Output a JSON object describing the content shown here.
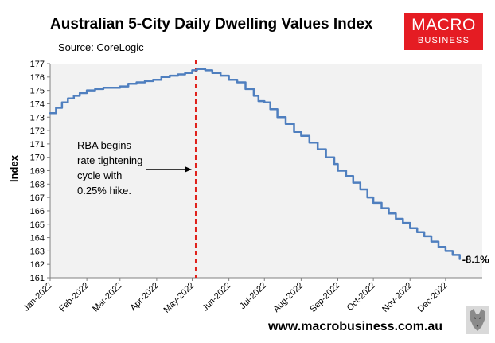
{
  "chart_data": {
    "type": "line",
    "title": "Australian 5-City Daily Dwelling Values Index",
    "subtitle": "Source: CoreLogic",
    "ylabel": "Index",
    "xlabel": "",
    "ylim": [
      161,
      177
    ],
    "yticks": [
      161,
      162,
      163,
      164,
      165,
      166,
      167,
      168,
      169,
      170,
      171,
      172,
      173,
      174,
      175,
      176,
      177
    ],
    "xlim_days": [
      0,
      365
    ],
    "x_ticks": [
      {
        "label": "Jan-2022",
        "day": 0
      },
      {
        "label": "Feb-2022",
        "day": 31
      },
      {
        "label": "Mar-2022",
        "day": 59
      },
      {
        "label": "Apr-2022",
        "day": 90
      },
      {
        "label": "May-2022",
        "day": 120
      },
      {
        "label": "Jun-2022",
        "day": 151
      },
      {
        "label": "Jul-2022",
        "day": 181
      },
      {
        "label": "Aug-2022",
        "day": 212
      },
      {
        "label": "Sep-2022",
        "day": 243
      },
      {
        "label": "Oct-2022",
        "day": 273
      },
      {
        "label": "Nov-2022",
        "day": 304
      },
      {
        "label": "Dec-2022",
        "day": 334
      }
    ],
    "series": [
      {
        "name": "5-City Daily Dwelling Values Index",
        "color": "#4f7fbf",
        "points": [
          [
            0,
            173.3
          ],
          [
            5,
            173.7
          ],
          [
            10,
            174.1
          ],
          [
            15,
            174.4
          ],
          [
            20,
            174.6
          ],
          [
            25,
            174.8
          ],
          [
            31,
            175.0
          ],
          [
            38,
            175.1
          ],
          [
            45,
            175.2
          ],
          [
            52,
            175.2
          ],
          [
            59,
            175.3
          ],
          [
            66,
            175.5
          ],
          [
            73,
            175.6
          ],
          [
            80,
            175.7
          ],
          [
            87,
            175.8
          ],
          [
            94,
            176.0
          ],
          [
            101,
            176.1
          ],
          [
            108,
            176.2
          ],
          [
            114,
            176.3
          ],
          [
            120,
            176.5
          ],
          [
            124,
            176.6
          ],
          [
            127,
            176.6
          ],
          [
            131,
            176.5
          ],
          [
            137,
            176.3
          ],
          [
            144,
            176.1
          ],
          [
            151,
            175.8
          ],
          [
            158,
            175.6
          ],
          [
            165,
            175.1
          ],
          [
            172,
            174.6
          ],
          [
            176,
            174.2
          ],
          [
            181,
            174.1
          ],
          [
            186,
            173.6
          ],
          [
            192,
            173.0
          ],
          [
            199,
            172.5
          ],
          [
            206,
            171.9
          ],
          [
            212,
            171.6
          ],
          [
            219,
            171.1
          ],
          [
            226,
            170.6
          ],
          [
            233,
            170.0
          ],
          [
            240,
            169.5
          ],
          [
            243,
            169.0
          ],
          [
            250,
            168.6
          ],
          [
            256,
            168.1
          ],
          [
            262,
            167.6
          ],
          [
            268,
            167.0
          ],
          [
            273,
            166.6
          ],
          [
            280,
            166.2
          ],
          [
            286,
            165.8
          ],
          [
            292,
            165.4
          ],
          [
            298,
            165.1
          ],
          [
            304,
            164.7
          ],
          [
            310,
            164.4
          ],
          [
            316,
            164.1
          ],
          [
            322,
            163.7
          ],
          [
            328,
            163.3
          ],
          [
            334,
            163.0
          ],
          [
            340,
            162.7
          ],
          [
            346,
            162.4
          ]
        ]
      }
    ],
    "marker": {
      "day": 123,
      "style": "dashed",
      "color": "#e0201b"
    },
    "annotation": {
      "lines": [
        "RBA begins",
        "rate tightening",
        "cycle with",
        "0.25% hike."
      ],
      "arrow_to_day": 123,
      "arrow_at_value": 169.1
    },
    "end_label": "-8.1%",
    "grid": false,
    "legend": "none"
  },
  "branding": {
    "logo_line1": "MACRO",
    "logo_line2": "BUSINESS",
    "logo_color": "#e51c23",
    "website": "www.macrobusiness.com.au"
  }
}
